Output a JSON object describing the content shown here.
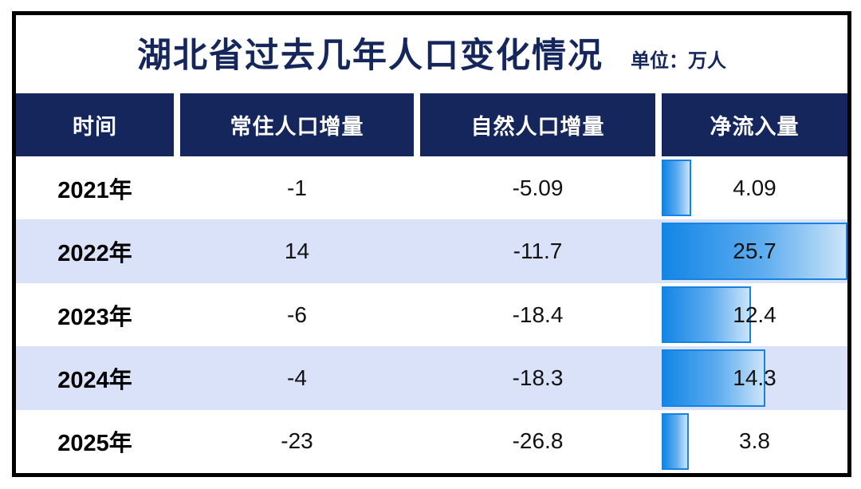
{
  "title": "湖北省过去几年人口变化情况",
  "unit_label": "单位：万人",
  "colors": {
    "header_navy": "#15265c",
    "row_alt_blue": "#d9e2f8",
    "bar_gradient_start": "#1385e6",
    "bar_gradient_end": "#cbe4fa",
    "bar_border": "#1583e2",
    "frame_border": "#000000",
    "header_text": "#ffffff",
    "body_text": "#111111"
  },
  "table": {
    "columns": [
      "时间",
      "常住人口增量",
      "自然人口增量",
      "净流入量"
    ],
    "net_inflow_max": 25.7,
    "rows": [
      {
        "year": "2021年",
        "resident": "-1",
        "natural": "-5.09",
        "net_inflow": "4.09",
        "net_inflow_num": 4.09
      },
      {
        "year": "2022年",
        "resident": "14",
        "natural": "-11.7",
        "net_inflow": "25.7",
        "net_inflow_num": 25.7
      },
      {
        "year": "2023年",
        "resident": "-6",
        "natural": "-18.4",
        "net_inflow": "12.4",
        "net_inflow_num": 12.4
      },
      {
        "year": "2024年",
        "resident": "-4",
        "natural": "-18.3",
        "net_inflow": "14.3",
        "net_inflow_num": 14.3
      },
      {
        "year": "2025年",
        "resident": "-23",
        "natural": "-26.8",
        "net_inflow": "3.8",
        "net_inflow_num": 3.8
      }
    ]
  },
  "chart_data": {
    "type": "table",
    "title": "湖北省过去几年人口变化情况",
    "unit": "万人",
    "columns": [
      "时间",
      "常住人口增量",
      "自然人口增量",
      "净流入量"
    ],
    "rows": [
      [
        "2021年",
        -1,
        -5.09,
        4.09
      ],
      [
        "2022年",
        14,
        -11.7,
        25.7
      ],
      [
        "2023年",
        -6,
        -18.4,
        12.4
      ],
      [
        "2024年",
        -4,
        -18.3,
        14.3
      ],
      [
        "2025年",
        -23,
        -26.8,
        3.8
      ]
    ],
    "bar_column": "净流入量",
    "bar_type": "bar",
    "bar_values": [
      4.09,
      25.7,
      12.4,
      14.3,
      3.8
    ],
    "bar_max": 25.7,
    "row_striping": [
      "white",
      "light-blue",
      "white",
      "light-blue",
      "white"
    ]
  }
}
